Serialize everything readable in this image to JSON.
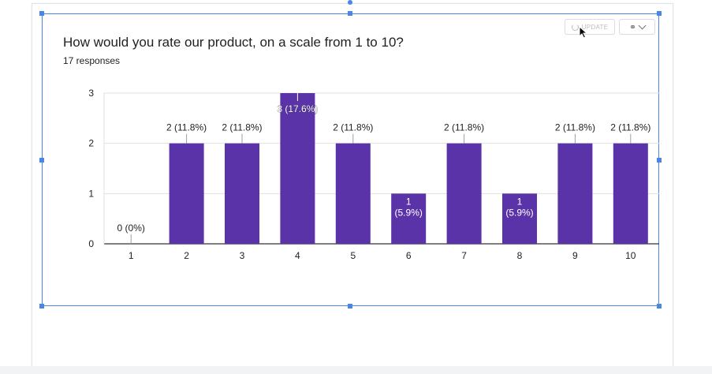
{
  "form_summary": {
    "question": "How would you rate our product, on a scale from 1 to 10?",
    "responses": "17 responses"
  },
  "toolbar": {
    "update_label": "UPDATE"
  },
  "colors": {
    "bar": "#5b33a8",
    "grid": "#e0e0e0",
    "selection": "#4a86e8"
  },
  "icons": {
    "update": "refresh-icon",
    "link": "link-icon",
    "menu": "chevron-down-icon"
  },
  "chart_data": {
    "type": "bar",
    "title": "How would you rate our product, on a scale from 1 to 10?",
    "subtitle": "17 responses",
    "categories": [
      "1",
      "2",
      "3",
      "4",
      "5",
      "6",
      "7",
      "8",
      "9",
      "10"
    ],
    "values": [
      0,
      2,
      2,
      3,
      2,
      1,
      2,
      1,
      2,
      2
    ],
    "data_labels": [
      "0 (0%)",
      "2 (11.8%)",
      "2 (11.8%)",
      "3 (17.6%)",
      "2 (11.8%)",
      "1 (5.9%)",
      "2 (11.8%)",
      "1 (5.9%)",
      "2 (11.8%)",
      "2 (11.8%)"
    ],
    "yticks": [
      "0",
      "1",
      "2",
      "3"
    ],
    "ylim": [
      0,
      3
    ],
    "grid": true
  }
}
